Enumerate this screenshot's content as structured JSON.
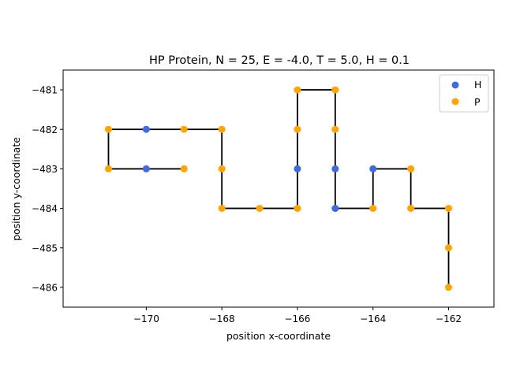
{
  "chart_data": {
    "type": "scatter",
    "title": "HP Protein, N = 25, E = -4.0, T = 5.0, H = 0.1",
    "xlabel": "position x-coordinate",
    "ylabel": "position y-coordinate",
    "xlim": [
      -172.2,
      -160.8
    ],
    "ylim": [
      -486.5,
      -480.5
    ],
    "xticks": [
      -170,
      -168,
      -166,
      -164,
      -162
    ],
    "yticks": [
      -481,
      -482,
      -483,
      -484,
      -485,
      -486
    ],
    "xtick_labels": [
      "−170",
      "−168",
      "−166",
      "−164",
      "−162"
    ],
    "ytick_labels": [
      "−481",
      "−482",
      "−483",
      "−484",
      "−485",
      "−486"
    ],
    "grid": false,
    "legend_position": "top-right",
    "chain": {
      "color": "#000000",
      "points": [
        {
          "x": -170,
          "y": -483,
          "t": "H"
        },
        {
          "x": -171,
          "y": -483,
          "t": "P"
        },
        {
          "x": -171,
          "y": -482,
          "t": "P"
        },
        {
          "x": -170,
          "y": -482,
          "t": "H"
        },
        {
          "x": -169,
          "y": -482,
          "t": "P"
        },
        {
          "x": -168,
          "y": -482,
          "t": "P"
        },
        {
          "x": -168,
          "y": -483,
          "t": "P"
        },
        {
          "x": -168,
          "y": -484,
          "t": "P"
        },
        {
          "x": -167,
          "y": -484,
          "t": "P"
        },
        {
          "x": -166,
          "y": -484,
          "t": "P"
        },
        {
          "x": -166,
          "y": -483,
          "t": "H"
        },
        {
          "x": -166,
          "y": -482,
          "t": "P"
        },
        {
          "x": -166,
          "y": -481,
          "t": "P"
        },
        {
          "x": -165,
          "y": -481,
          "t": "P"
        },
        {
          "x": -165,
          "y": -482,
          "t": "P"
        },
        {
          "x": -165,
          "y": -483,
          "t": "H"
        },
        {
          "x": -165,
          "y": -484,
          "t": "H"
        },
        {
          "x": -164,
          "y": -484,
          "t": "P"
        },
        {
          "x": -164,
          "y": -483,
          "t": "H"
        },
        {
          "x": -163,
          "y": -483,
          "t": "P"
        },
        {
          "x": -163,
          "y": -484,
          "t": "P"
        },
        {
          "x": -162,
          "y": -484,
          "t": "P"
        },
        {
          "x": -162,
          "y": -485,
          "t": "P"
        },
        {
          "x": -162,
          "y": -486,
          "t": "P"
        }
      ],
      "extra_points": [
        {
          "x": -169,
          "y": -483,
          "t": "P"
        }
      ],
      "extra_segment": [
        [
          -170,
          -483
        ],
        [
          -169,
          -483
        ]
      ]
    },
    "series": [
      {
        "name": "H",
        "color": "#4169e1"
      },
      {
        "name": "P",
        "color": "#ffa500"
      }
    ]
  }
}
